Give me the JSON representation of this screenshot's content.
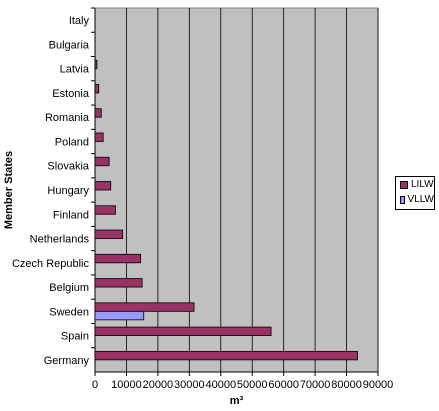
{
  "chart_data": {
    "type": "bar",
    "orientation": "horizontal",
    "title": "",
    "xlabel": "m³",
    "ylabel": "Member States",
    "categories": [
      "Italy",
      "Bulgaria",
      "Latvia",
      "Estonia",
      "Romania",
      "Poland",
      "Slovakia",
      "Hungary",
      "Finland",
      "Netherlands",
      "Czech Republic",
      "Belgium",
      "Sweden",
      "Spain",
      "Germany"
    ],
    "series": [
      {
        "name": "LILW",
        "color": "#993366",
        "values": [
          0,
          0,
          600,
          1200,
          2000,
          2600,
          4500,
          5000,
          6500,
          8800,
          14500,
          15000,
          31500,
          56000,
          83500
        ]
      },
      {
        "name": "VLLW",
        "color": "#9999ff",
        "values": [
          0,
          0,
          0,
          0,
          0,
          0,
          0,
          0,
          0,
          0,
          0,
          0,
          15500,
          0,
          0
        ]
      }
    ],
    "xlim": [
      0,
      90000
    ],
    "xticks": [
      "0",
      "10000",
      "20000",
      "30000",
      "40000",
      "50000",
      "60000",
      "70000",
      "80000",
      "90000"
    ],
    "grid": true,
    "plot_background": "#c0c0c0",
    "legend_position": "right"
  }
}
